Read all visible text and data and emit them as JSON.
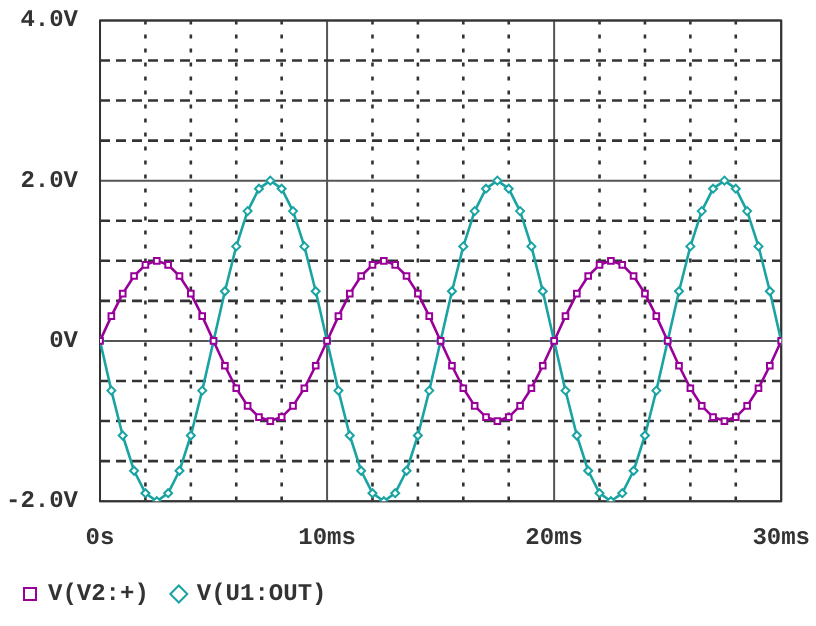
{
  "chart_data": {
    "type": "line",
    "x": [
      0,
      0.5,
      1,
      1.5,
      2,
      2.5,
      3,
      3.5,
      4,
      4.5,
      5,
      5.5,
      6,
      6.5,
      7,
      7.5,
      8,
      8.5,
      9,
      9.5,
      10,
      10.5,
      11,
      11.5,
      12,
      12.5,
      13,
      13.5,
      14,
      14.5,
      15,
      15.5,
      16,
      16.5,
      17,
      17.5,
      18,
      18.5,
      19,
      19.5,
      20,
      20.5,
      21,
      21.5,
      22,
      22.5,
      23,
      23.5,
      24,
      24.5,
      25,
      25.5,
      26,
      26.5,
      27,
      27.5,
      28,
      28.5,
      29,
      29.5,
      30
    ],
    "series": [
      {
        "name": "V(V2:+)",
        "color": "#990099",
        "marker": "square",
        "values": [
          0,
          0.31,
          0.59,
          0.81,
          0.95,
          1,
          0.95,
          0.81,
          0.59,
          0.31,
          0,
          -0.31,
          -0.59,
          -0.81,
          -0.95,
          -1,
          -0.95,
          -0.81,
          -0.59,
          -0.31,
          0,
          0.31,
          0.59,
          0.81,
          0.95,
          1,
          0.95,
          0.81,
          0.59,
          0.31,
          0,
          -0.31,
          -0.59,
          -0.81,
          -0.95,
          -1,
          -0.95,
          -0.81,
          -0.59,
          -0.31,
          0,
          0.31,
          0.59,
          0.81,
          0.95,
          1,
          0.95,
          0.81,
          0.59,
          0.31,
          0,
          -0.31,
          -0.59,
          -0.81,
          -0.95,
          -1,
          -0.95,
          -0.81,
          -0.59,
          -0.31,
          0
        ]
      },
      {
        "name": "V(U1:OUT)",
        "color": "#1aa3a3",
        "marker": "diamond",
        "values": [
          0,
          -0.62,
          -1.18,
          -1.62,
          -1.9,
          -2,
          -1.9,
          -1.62,
          -1.18,
          -0.62,
          0,
          0.62,
          1.18,
          1.62,
          1.9,
          2,
          1.9,
          1.62,
          1.18,
          0.62,
          0,
          -0.62,
          -1.18,
          -1.62,
          -1.9,
          -2,
          -1.9,
          -1.62,
          -1.18,
          -0.62,
          0,
          0.62,
          1.18,
          1.62,
          1.9,
          2,
          1.9,
          1.62,
          1.18,
          0.62,
          0,
          -0.62,
          -1.18,
          -1.62,
          -1.9,
          -2,
          -1.9,
          -1.62,
          -1.18,
          -0.62,
          0,
          0.62,
          1.18,
          1.62,
          1.9,
          2,
          1.9,
          1.62,
          1.18,
          0.62,
          0
        ]
      }
    ],
    "xlim": [
      0,
      30
    ],
    "xticks": [
      {
        "value": 0,
        "label": "0s"
      },
      {
        "value": 2,
        "label": null
      },
      {
        "value": 4,
        "label": null
      },
      {
        "value": 6,
        "label": null
      },
      {
        "value": 8,
        "label": null
      },
      {
        "value": 10,
        "label": "10ms"
      },
      {
        "value": 12,
        "label": null
      },
      {
        "value": 14,
        "label": null
      },
      {
        "value": 16,
        "label": null
      },
      {
        "value": 18,
        "label": null
      },
      {
        "value": 20,
        "label": "20ms"
      },
      {
        "value": 22,
        "label": null
      },
      {
        "value": 24,
        "label": null
      },
      {
        "value": 26,
        "label": null
      },
      {
        "value": 28,
        "label": null
      },
      {
        "value": 30,
        "label": "30ms"
      }
    ],
    "ylim": [
      -2,
      4
    ],
    "yticks": [
      {
        "value": -2,
        "label": "-2.0V"
      },
      {
        "value": -1.5,
        "label": null
      },
      {
        "value": -1,
        "label": null
      },
      {
        "value": -0.5,
        "label": null
      },
      {
        "value": 0,
        "label": "0V"
      },
      {
        "value": 0.5,
        "label": null
      },
      {
        "value": 1,
        "label": null
      },
      {
        "value": 1.5,
        "label": null
      },
      {
        "value": 2,
        "label": "2.0V"
      },
      {
        "value": 2.5,
        "label": null
      },
      {
        "value": 3,
        "label": null
      },
      {
        "value": 3.5,
        "label": null
      },
      {
        "value": 4,
        "label": "4.0V"
      }
    ],
    "grid": true,
    "legend": "bottom",
    "line_style": "solid"
  }
}
